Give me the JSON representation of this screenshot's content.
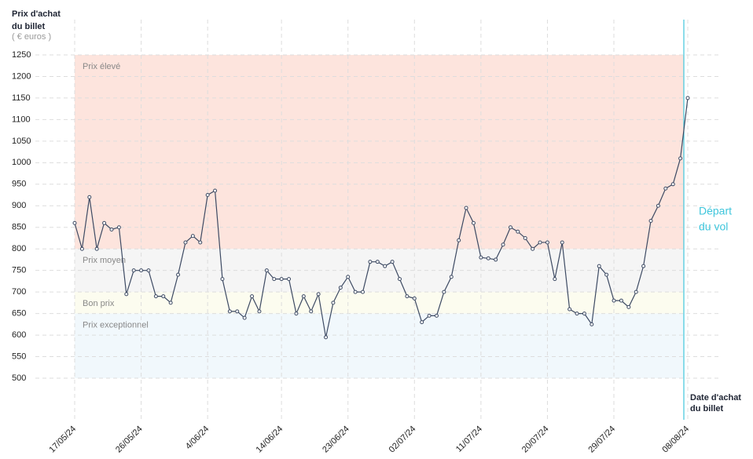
{
  "chart_data": {
    "type": "line",
    "y_label_lines": [
      "Prix d'achat",
      "du billet"
    ],
    "y_unit": "( € euros )",
    "x_label_lines": [
      "Date d'achat",
      "du billet"
    ],
    "departure_lines": [
      "Départ",
      "du vol"
    ],
    "categories": [
      "17/05/24",
      null,
      null,
      null,
      null,
      null,
      null,
      null,
      null,
      "26/05/24",
      null,
      null,
      null,
      null,
      null,
      null,
      null,
      null,
      "4/06/24",
      null,
      null,
      null,
      null,
      null,
      null,
      null,
      null,
      null,
      "14/06/24",
      null,
      null,
      null,
      null,
      null,
      null,
      null,
      null,
      "23/06/24",
      null,
      null,
      null,
      null,
      null,
      null,
      null,
      null,
      "02/07/24",
      null,
      null,
      null,
      null,
      null,
      null,
      null,
      null,
      "11/07/24",
      null,
      null,
      null,
      null,
      null,
      null,
      null,
      null,
      "20/07/24",
      null,
      null,
      null,
      null,
      null,
      null,
      null,
      null,
      "29/07/24",
      null,
      null,
      null,
      null,
      null,
      null,
      null,
      null,
      null,
      "08/08/24"
    ],
    "series": [
      {
        "color": "#3d4a63",
        "values": [
          860,
          800,
          920,
          800,
          860,
          845,
          850,
          695,
          750,
          750,
          750,
          690,
          690,
          675,
          740,
          815,
          830,
          815,
          925,
          935,
          730,
          655,
          655,
          640,
          690,
          655,
          750,
          730,
          730,
          730,
          650,
          690,
          655,
          695,
          595,
          675,
          710,
          735,
          700,
          700,
          770,
          770,
          760,
          770,
          730,
          690,
          685,
          630,
          645,
          645,
          700,
          735,
          820,
          895,
          860,
          780,
          778,
          775,
          810,
          850,
          840,
          825,
          800,
          815,
          815,
          730,
          815,
          660,
          650,
          650,
          625,
          760,
          740,
          680,
          680,
          665,
          700,
          760,
          865,
          900,
          940,
          950,
          1010,
          1150
        ]
      }
    ],
    "bands": [
      {
        "label": "Prix élevé",
        "from": 800,
        "to": 1250,
        "color": "#fde4dd"
      },
      {
        "label": "Prix moyen",
        "from": 700,
        "to": 800,
        "color": "#f5f5f5"
      },
      {
        "label": "Bon prix",
        "from": 650,
        "to": 700,
        "color": "#fcfcef"
      },
      {
        "label": "Prix exceptionnel",
        "from": 500,
        "to": 650,
        "color": "#f1f8fc"
      }
    ],
    "ylim": [
      500,
      1250
    ],
    "yticks": [
      500,
      550,
      600,
      650,
      700,
      750,
      800,
      850,
      900,
      950,
      1000,
      1050,
      1100,
      1150,
      1200,
      1250
    ],
    "grid": true
  }
}
